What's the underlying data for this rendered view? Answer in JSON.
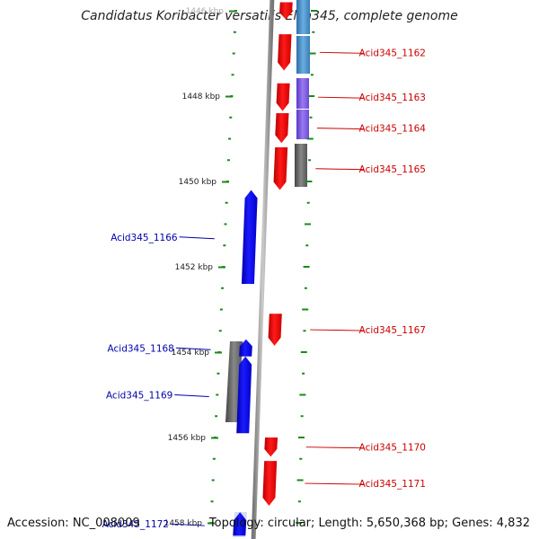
{
  "title": "Candidatus Koribacter versatilis Ellin345, complete genome",
  "accession_text": "Accession: NC_008009",
  "summary_text": "Topology: circular; Length: 5,650,368 bp; Genes: 4,832",
  "colors": {
    "forward_gene": "#ee1111",
    "reverse_gene": "#1111ee",
    "label_forward": "#cc0000",
    "label_reverse": "#0000aa",
    "gray_track": "#666666",
    "blue_track": "#4a8fc8",
    "purple_track": "#7a5ae0",
    "backbone": "#888888",
    "tick_dot": "#1a8a1a"
  },
  "scale_labels": [
    "1446 kbp",
    "1448 kbp",
    "1450 kbp",
    "1452 kbp",
    "1454 kbp",
    "1456 kbp",
    "1458 kbp"
  ],
  "genes": [
    {
      "name": "",
      "strand": "forward",
      "kbp_start": 1445.8,
      "kbp_end": 1446.2
    },
    {
      "name": "Acid345_1162",
      "strand": "forward",
      "kbp_start": 1446.55,
      "kbp_end": 1447.4
    },
    {
      "name": "Acid345_1163",
      "strand": "forward",
      "kbp_start": 1447.7,
      "kbp_end": 1448.35
    },
    {
      "name": "Acid345_1164",
      "strand": "forward",
      "kbp_start": 1448.4,
      "kbp_end": 1449.1
    },
    {
      "name": "Acid345_1165",
      "strand": "forward",
      "kbp_start": 1449.2,
      "kbp_end": 1450.2
    },
    {
      "name": "Acid345_1166",
      "strand": "reverse",
      "kbp_start": 1450.2,
      "kbp_end": 1452.4
    },
    {
      "name": "Acid345_1167",
      "strand": "forward",
      "kbp_start": 1453.1,
      "kbp_end": 1453.85
    },
    {
      "name": "Acid345_1168",
      "strand": "reverse",
      "kbp_start": 1453.7,
      "kbp_end": 1454.1
    },
    {
      "name": "Acid345_1169",
      "strand": "reverse",
      "kbp_start": 1454.1,
      "kbp_end": 1455.9
    },
    {
      "name": "Acid345_1170",
      "strand": "forward",
      "kbp_start": 1456.0,
      "kbp_end": 1456.45
    },
    {
      "name": "Acid345_1171",
      "strand": "forward",
      "kbp_start": 1456.55,
      "kbp_end": 1457.6
    },
    {
      "name": "Acid345_1172",
      "strand": "reverse",
      "kbp_start": 1457.75,
      "kbp_end": 1458.3
    }
  ]
}
